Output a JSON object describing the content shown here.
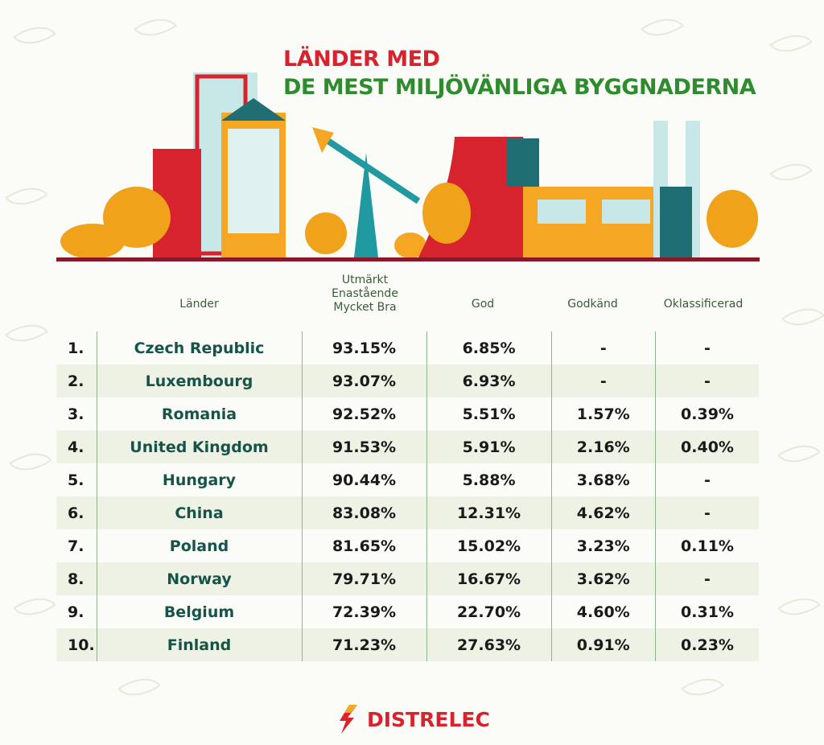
{
  "title": {
    "line1": "LÄNDER MED",
    "line2": "DE MEST MILJÖVÄNLIGA BYGGNADERNA"
  },
  "colors": {
    "red": "#d7232e",
    "green": "#2e8b2e",
    "country": "#16544a",
    "row_alt": "#eef2e4"
  },
  "table": {
    "headers": [
      "Länder",
      "Utmärkt\nEnastående\nMycket Bra",
      "God",
      "Godkänd",
      "Oklassificerad"
    ],
    "rows": [
      [
        "1.",
        "Czech Republic",
        "93.15%",
        "6.85%",
        "-",
        "-"
      ],
      [
        "2.",
        "Luxembourg",
        "93.07%",
        "6.93%",
        "-",
        "-"
      ],
      [
        "3.",
        "Romania",
        "92.52%",
        "5.51%",
        "1.57%",
        "0.39%"
      ],
      [
        "4.",
        "United Kingdom",
        "91.53%",
        "5.91%",
        "2.16%",
        "0.40%"
      ],
      [
        "5.",
        "Hungary",
        "90.44%",
        "5.88%",
        "3.68%",
        "-"
      ],
      [
        "6.",
        "China",
        "83.08%",
        "12.31%",
        "4.62%",
        "-"
      ],
      [
        "7.",
        "Poland",
        "81.65%",
        "15.02%",
        "3.23%",
        "0.11%"
      ],
      [
        "8.",
        "Norway",
        "79.71%",
        "16.67%",
        "3.62%",
        "-"
      ],
      [
        "9.",
        "Belgium",
        "72.39%",
        "22.70%",
        "4.60%",
        "0.31%"
      ],
      [
        "10.",
        "Finland",
        "71.23%",
        "27.63%",
        "0.91%",
        "0.23%"
      ]
    ]
  },
  "logo": {
    "text": "DISTRELEC",
    "icon": "lightning-bolt-icon"
  }
}
